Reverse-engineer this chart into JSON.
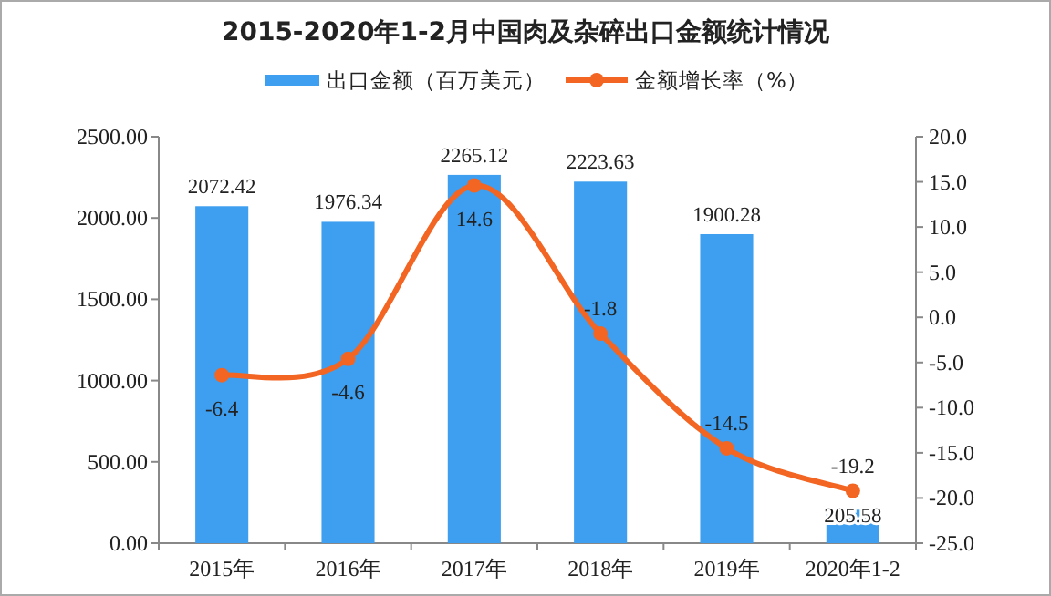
{
  "chart_data": {
    "type": "bar",
    "title": "2015-2020年1-2月中国肉及杂碎出口金额统计情况",
    "categories": [
      "2015年",
      "2016年",
      "2017年",
      "2018年",
      "2019年",
      "2020年1-2"
    ],
    "series": [
      {
        "name": "出口金额（百万美元）",
        "color": "#3e9ff0",
        "values": [
          2072.42,
          1976.34,
          2265.12,
          2223.63,
          1900.28,
          205.58
        ]
      },
      {
        "name": "金额增长率（%）",
        "type": "line",
        "axis": "y2",
        "color": "#f26522",
        "marker": "circle",
        "values": [
          -6.4,
          -4.6,
          14.6,
          -1.8,
          -14.5,
          -19.2
        ]
      }
    ],
    "ylim": [
      0,
      2500
    ],
    "yticks": [
      {
        "value": 0,
        "label": "0.00"
      },
      {
        "value": 500,
        "label": "500.00"
      },
      {
        "value": 1000,
        "label": "1000.00"
      },
      {
        "value": 1500,
        "label": "1500.00"
      },
      {
        "value": 2000,
        "label": "2000.00"
      },
      {
        "value": 2500,
        "label": "2500.00"
      }
    ],
    "y2lim": [
      -25,
      20
    ],
    "y2ticks": [
      {
        "value": -25,
        "label": "-25.0"
      },
      {
        "value": -20,
        "label": "-20.0"
      },
      {
        "value": -15,
        "label": "-15.0"
      },
      {
        "value": -10,
        "label": "-10.0"
      },
      {
        "value": -5,
        "label": "-5.0"
      },
      {
        "value": 0,
        "label": "0.0"
      },
      {
        "value": 5,
        "label": "5.0"
      },
      {
        "value": 10,
        "label": "10.0"
      },
      {
        "value": 15,
        "label": "15.0"
      },
      {
        "value": 20,
        "label": "20.0"
      }
    ],
    "data_labels": true,
    "legend": "top",
    "grid": false
  }
}
